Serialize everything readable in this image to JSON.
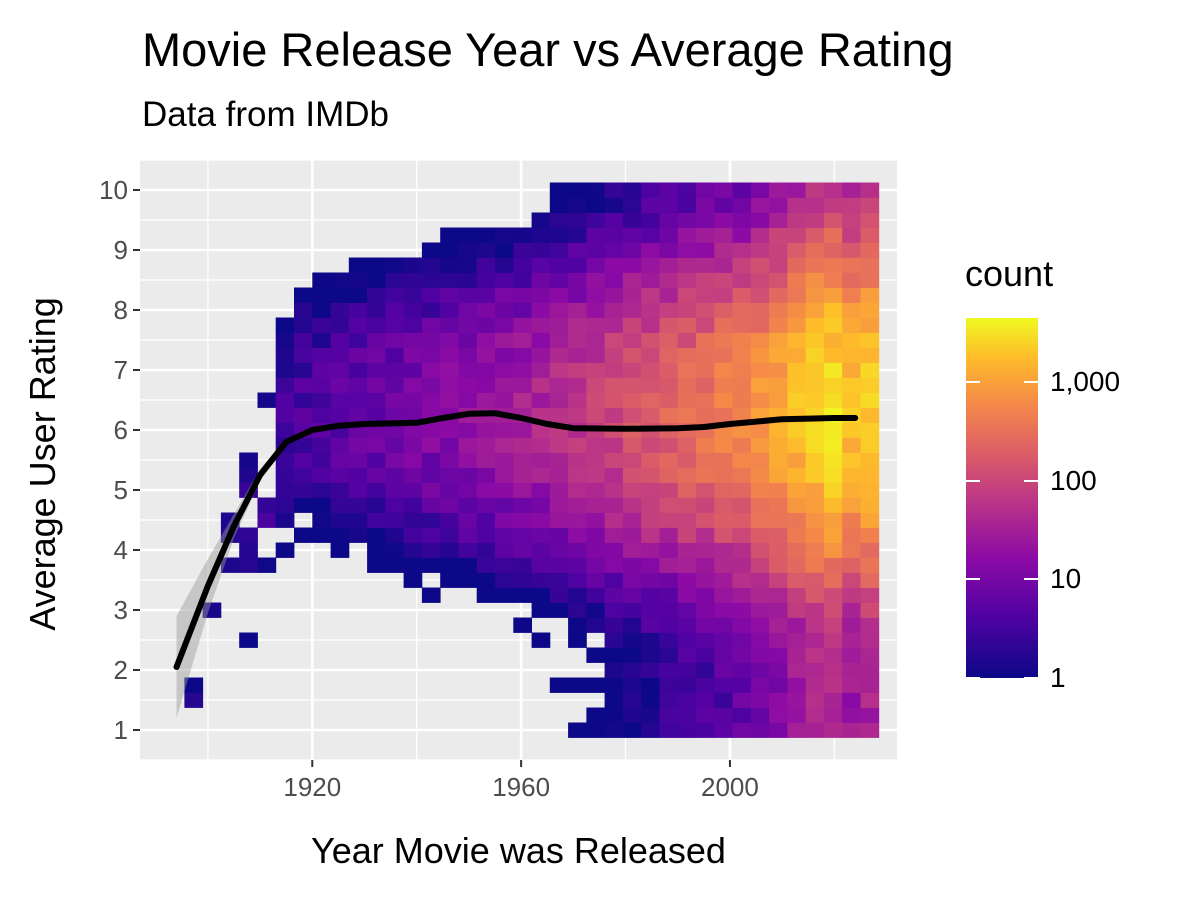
{
  "chart_data": {
    "type": "heatmap",
    "title": "Movie Release Year vs Average Rating",
    "subtitle": "Data from IMDb",
    "xlabel": "Year Movie was Released",
    "ylabel": "Average User Rating",
    "x_ticks": [
      1920,
      1960,
      2000
    ],
    "y_ticks": [
      1,
      2,
      3,
      4,
      5,
      6,
      7,
      8,
      9,
      10
    ],
    "xlim": [
      1887,
      2032
    ],
    "ylim": [
      0.5,
      10.5
    ],
    "bin_width_years": 3.5,
    "bin_height_rating": 0.25,
    "grid": true,
    "legend": {
      "title": "count",
      "position": "right",
      "scale": "log10",
      "breaks": [
        1,
        10,
        100,
        1000
      ],
      "labels": [
        "1",
        "10",
        "100",
        "1,000"
      ],
      "max_count": 4500,
      "colormap": [
        "#0d0887",
        "#5302a3",
        "#8b0aa5",
        "#b83289",
        "#db5c68",
        "#f48849",
        "#febc2a",
        "#f0f921"
      ]
    },
    "smooth": {
      "color": "#000000",
      "points": [
        [
          1894,
          2.05
        ],
        [
          1900,
          3.4
        ],
        [
          1905,
          4.4
        ],
        [
          1910,
          5.25
        ],
        [
          1915,
          5.8
        ],
        [
          1920,
          6.0
        ],
        [
          1925,
          6.07
        ],
        [
          1930,
          6.1
        ],
        [
          1940,
          6.12
        ],
        [
          1945,
          6.2
        ],
        [
          1950,
          6.27
        ],
        [
          1955,
          6.28
        ],
        [
          1960,
          6.2
        ],
        [
          1965,
          6.1
        ],
        [
          1970,
          6.03
        ],
        [
          1980,
          6.02
        ],
        [
          1990,
          6.03
        ],
        [
          1995,
          6.05
        ],
        [
          2000,
          6.1
        ],
        [
          2010,
          6.18
        ],
        [
          2020,
          6.2
        ],
        [
          2024,
          6.2
        ]
      ],
      "ribbon_halfwidth": [
        0.85,
        0.45,
        0.2,
        0.1,
        0.05,
        0.03,
        0.02,
        0.02,
        0.02,
        0.02,
        0.02,
        0.02,
        0.02,
        0.02,
        0.02,
        0.02,
        0.02,
        0.02,
        0.02,
        0.02,
        0.02,
        0.02
      ]
    }
  }
}
